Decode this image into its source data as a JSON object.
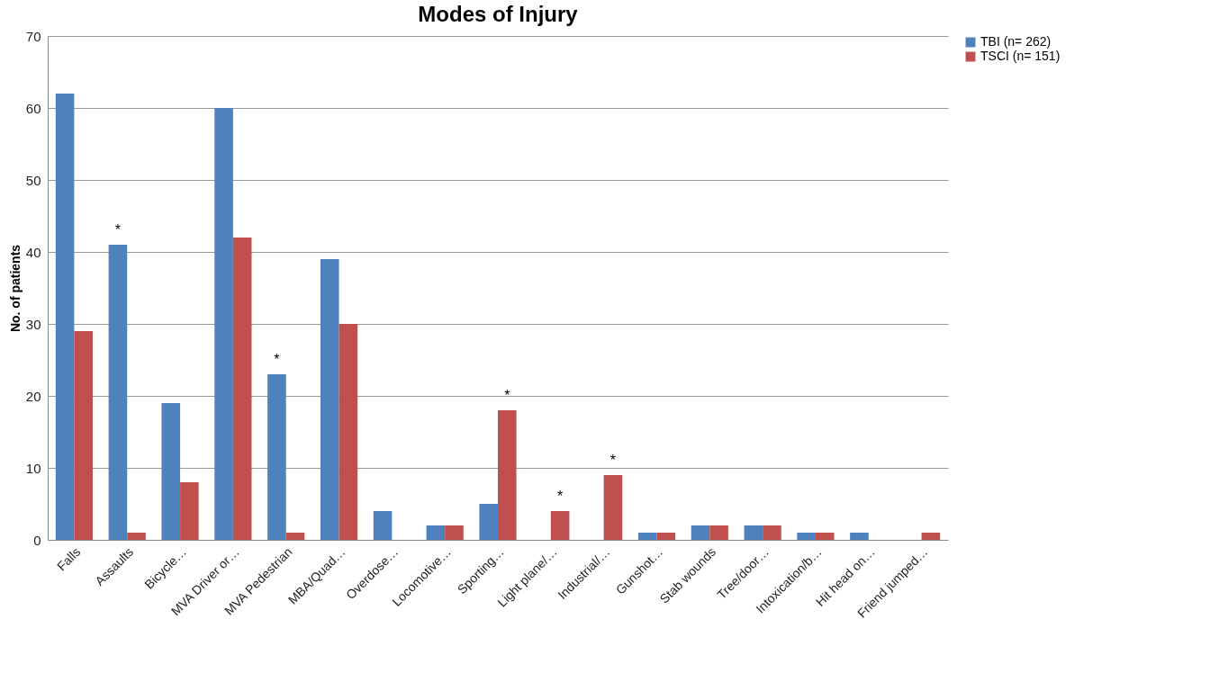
{
  "chart_data": {
    "type": "bar",
    "title": "Modes of Injury",
    "ylabel": "No. of patients",
    "categories": [
      "Falls",
      "Assaults",
      "Bicycle…",
      "MVA Driver or…",
      "MVA Pedestrian",
      "MBA/Quad…",
      "Overdose…",
      "Locomotive…",
      "Sporting…",
      "Light plane/…",
      "Industrial/…",
      "Gunshot…",
      "Stab wounds",
      "Tree/door…",
      "Intoxication/b…",
      "Hit head on…",
      "Friend jumped…"
    ],
    "series": [
      {
        "name": "TBI (n= 262)",
        "color": "#4f81bd",
        "values": [
          62,
          41,
          19,
          60,
          23,
          39,
          4,
          2,
          5,
          0,
          0,
          1,
          2,
          2,
          1,
          1,
          0
        ]
      },
      {
        "name": "TSCI (n= 151)",
        "color": "#c0504d",
        "values": [
          29,
          1,
          8,
          42,
          1,
          30,
          0,
          2,
          18,
          4,
          9,
          1,
          2,
          2,
          1,
          0,
          1
        ]
      }
    ],
    "ylim": [
      0,
      70
    ],
    "yticks": [
      0,
      10,
      20,
      30,
      40,
      50,
      60,
      70
    ],
    "grid": "y",
    "legend": "right",
    "annotations": [
      {
        "text": "*",
        "x": "Assaults",
        "y": 41
      },
      {
        "text": "*",
        "x": "MVA Pedestrian",
        "y": 23
      },
      {
        "text": "*",
        "x": "Sporting…",
        "y": 18
      },
      {
        "text": "*",
        "x": "Light plane/…",
        "y": 4
      },
      {
        "text": "*",
        "x": "Industrial/…",
        "y": 9
      }
    ]
  }
}
